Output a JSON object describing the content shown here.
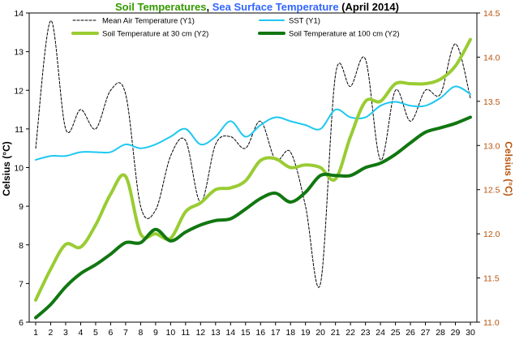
{
  "chart_data": {
    "type": "line",
    "title_parts": [
      {
        "text": "Soil Temperatures",
        "color": "#339900"
      },
      {
        "text": ", ",
        "color": "#000000"
      },
      {
        "text": "Sea Surface Temperature",
        "color": "#3366FF"
      },
      {
        "text": " (April 2014)",
        "color": "#000000"
      }
    ],
    "ylabel": "Celsius (°C)",
    "y2label": "Celsius (°C)",
    "y2label_color": "#B8520A",
    "x": [
      1,
      2,
      3,
      4,
      5,
      6,
      7,
      8,
      9,
      10,
      11,
      12,
      13,
      14,
      15,
      16,
      17,
      18,
      19,
      20,
      21,
      22,
      23,
      24,
      25,
      26,
      27,
      28,
      29,
      30
    ],
    "ylim": [
      6,
      14
    ],
    "yticks": [
      6,
      7,
      8,
      9,
      10,
      11,
      12,
      13,
      14
    ],
    "y2lim": [
      11.0,
      14.5
    ],
    "y2ticks": [
      "11.0",
      "11.5",
      "12.0",
      "12.5",
      "13.0",
      "13.5",
      "14.0",
      "14.5"
    ],
    "grid": false,
    "legend_position": "top",
    "series": [
      {
        "name": "Mean Air Temperature (Y1)",
        "axis": "y1",
        "color": "#000000",
        "dashed": true,
        "values": [
          10.5,
          13.8,
          11.0,
          11.5,
          11.0,
          12.0,
          11.9,
          9.0,
          8.9,
          10.3,
          10.7,
          9.1,
          10.6,
          10.8,
          10.5,
          11.2,
          10.2,
          10.4,
          9.0,
          7.0,
          12.4,
          12.1,
          12.8,
          10.2,
          12.0,
          11.2,
          12.0,
          11.9,
          13.2,
          11.8
        ]
      },
      {
        "name": "SST (Y1)",
        "axis": "y1",
        "color": "#1EC8F0",
        "dashed": false,
        "values": [
          10.2,
          10.3,
          10.3,
          10.4,
          10.4,
          10.4,
          10.6,
          10.5,
          10.6,
          10.8,
          11.0,
          10.6,
          10.8,
          11.2,
          10.8,
          11.1,
          11.3,
          11.2,
          11.1,
          11.0,
          11.5,
          11.3,
          11.3,
          11.6,
          11.7,
          11.6,
          11.6,
          11.8,
          12.1,
          11.9
        ]
      },
      {
        "name": "Soil Temperature at 30 cm (Y2)",
        "axis": "y2",
        "color": "#99CC33",
        "dashed": false,
        "values": [
          11.25,
          11.6,
          11.88,
          11.85,
          12.1,
          12.45,
          12.65,
          12.0,
          12.0,
          11.95,
          12.25,
          12.35,
          12.5,
          12.52,
          12.6,
          12.83,
          12.85,
          12.75,
          12.78,
          12.75,
          12.62,
          13.1,
          13.5,
          13.5,
          13.7,
          13.7,
          13.7,
          13.75,
          13.9,
          14.2
        ]
      },
      {
        "name": "Soil Temperature at 100 cm (Y2)",
        "axis": "y2",
        "color": "#117711",
        "dashed": false,
        "values": [
          11.05,
          11.2,
          11.4,
          11.55,
          11.65,
          11.77,
          11.9,
          11.9,
          12.05,
          11.92,
          12.02,
          12.1,
          12.15,
          12.17,
          12.28,
          12.4,
          12.46,
          12.36,
          12.47,
          12.66,
          12.66,
          12.66,
          12.75,
          12.8,
          12.9,
          13.03,
          13.15,
          13.2,
          13.25,
          13.32
        ]
      }
    ]
  }
}
